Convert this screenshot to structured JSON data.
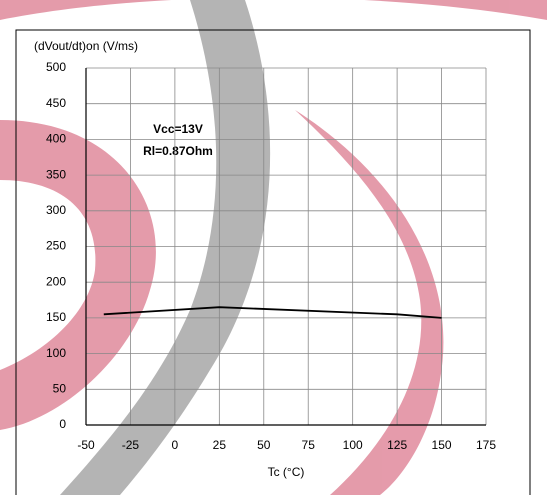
{
  "chart_data": {
    "type": "line",
    "ylabel": "(dVout/dt)on (V/ms)",
    "xlabel": "Tc (°C)",
    "annotations": [
      "Vcc=13V",
      "Rl=0.87Ohm"
    ],
    "x": [
      -40,
      25,
      125,
      150
    ],
    "series": [
      {
        "name": "(dVout/dt)on",
        "color": "#000000",
        "values": [
          155,
          165,
          155,
          150
        ]
      }
    ],
    "xlim": [
      -50,
      175
    ],
    "xticks": [
      -50,
      -25,
      0,
      25,
      50,
      75,
      100,
      125,
      150,
      175
    ],
    "ylim": [
      0,
      500
    ],
    "yticks": [
      0,
      50,
      100,
      150,
      200,
      250,
      300,
      350,
      400,
      450,
      500
    ],
    "grid": true
  }
}
